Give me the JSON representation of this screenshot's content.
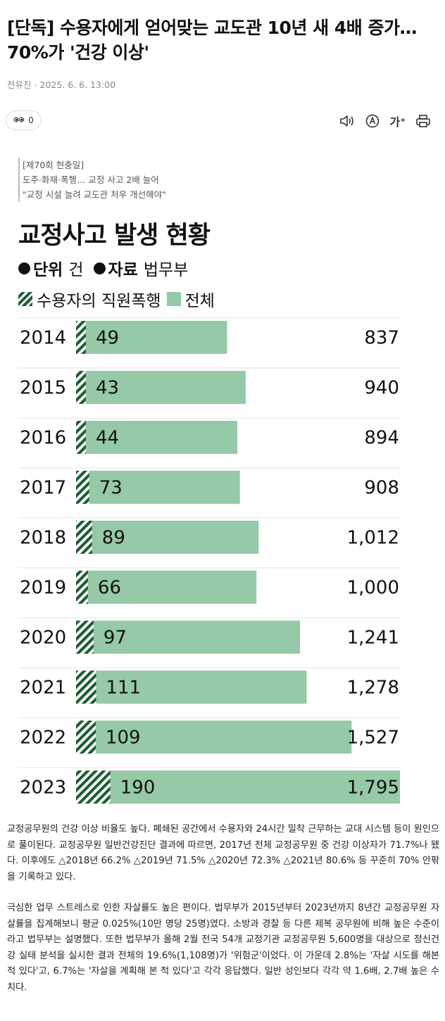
{
  "article": {
    "headline": "[단독] 수용자에게 얻어맞는 교도관 10년 새 4배 증가… 70%가 '건강 이상'",
    "author": "전유진",
    "date": "2025. 6. 6. 13:00",
    "view_count": "0",
    "subheads": [
      "[제70회 현충일]",
      "도주·화재·폭행… 교정 사고 2배 늘어",
      "\"교정 시설 늘려 교도관 처우 개선해야\""
    ],
    "paragraphs": [
      "교정공무원의 건강 이상 비율도 높다. 폐쇄된 공간에서 수용자와 24시간 밀착 근무하는 교대 시스템 등이 원인으로 풀이된다. 교정공무원 일반건강진단 결과에 따르면, 2017년 전체 교정공무원 중 건강 이상자가 71.7%나 됐다. 이후에도 △2018년 66.2% △2019년 71.5% △2020년 72.3% △2021년 80.6% 등 꾸준히 70% 안팎을 기록하고 있다.",
      "극심한 업무 스트레스로 인한 자살률도 높은 편이다. 법무부가 2015년부터 2023년까지 8년간 교정공무원 자살률을 집계해보니 평균 0.025%(10만 명당 25명)였다. 소방과 경찰 등 다른 제복 공무원에 비해 높은 수준이라고 법무부는 설명했다. 또한 법무부가 올해 2월 전국 54개 교정기관 교정공무원 5,600명을 대상으로 정신건강 실태 분석을 실시한 결과 전체의 19.6%(1,108명)가 '위험군'이었다. 이 가운데 2.8%는 '자살 시도를 해본 적 있다'고, 6.7%는 '자살을 계획해 본 적 있다'고 각각 응답했다. 일반 성인보다 각각 약 1.6배, 2.7배 높은 수치다."
    ]
  },
  "toolbar": {
    "icons": [
      "eye-icon",
      "speaker-icon",
      "translate-icon",
      "font-size-icon",
      "print-icon"
    ],
    "font_size_label": "가⁺"
  },
  "chart": {
    "title": "교정사고 발생 현황",
    "unit_label": "단위",
    "unit_value": "건",
    "source_label": "자료",
    "source_value": "법무부",
    "legend_violence": "수용자의 직원폭행",
    "legend_total": "전체"
  },
  "colors": {
    "bar_total": "#96c9a7",
    "hatch_dark": "#1f5e36",
    "grid": "#e4e4e4",
    "underline": "#e0202a"
  },
  "chart_data": {
    "type": "bar",
    "orientation": "horizontal",
    "title": "교정사고 발생 현황",
    "categories": [
      "2014",
      "2015",
      "2016",
      "2017",
      "2018",
      "2019",
      "2020",
      "2021",
      "2022",
      "2023"
    ],
    "series": [
      {
        "name": "수용자의 직원폭행",
        "values": [
          49,
          43,
          44,
          73,
          89,
          66,
          97,
          111,
          109,
          190
        ]
      },
      {
        "name": "전체",
        "values": [
          837,
          940,
          894,
          908,
          1012,
          1000,
          1241,
          1278,
          1527,
          1795
        ]
      }
    ],
    "xlim": [
      0,
      1795
    ],
    "grid": true
  }
}
